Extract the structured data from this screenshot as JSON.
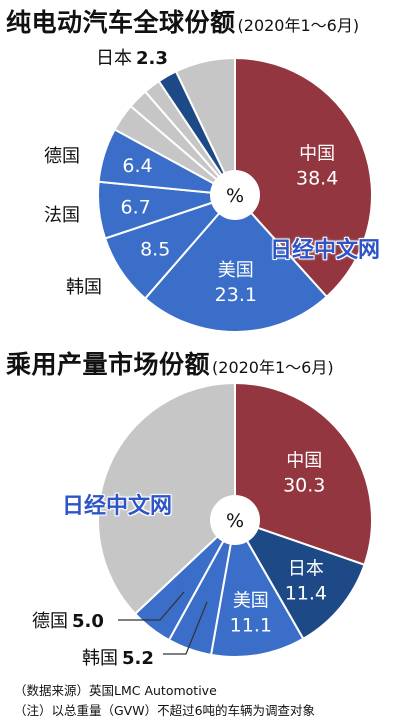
{
  "charts": [
    {
      "title": "纯电动汽车全球份额",
      "subtitle": "(2020年1～6月)",
      "unit": "%",
      "watermark": "日经中文网",
      "chart_data": {
        "type": "pie",
        "title": "纯电动汽车全球份额",
        "subtitle": "(2020年1～6月)",
        "unit": "%",
        "slices": [
          {
            "label": "中国",
            "value": 38.4,
            "color": "#93363f"
          },
          {
            "label": "美国",
            "value": 23.1,
            "color": "#3a6ec8"
          },
          {
            "label": "韩国",
            "value": 8.5,
            "color": "#3a6ec8"
          },
          {
            "label": "法国",
            "value": 6.7,
            "color": "#3a6ec8"
          },
          {
            "label": "德国",
            "value": 6.4,
            "color": "#3a6ec8"
          },
          {
            "label": "",
            "value": 3.3,
            "color": "#c6c6c6"
          },
          {
            "label": "",
            "value": 2.4,
            "color": "#c6c6c6"
          },
          {
            "label": "",
            "value": 2.0,
            "color": "#c6c6c6"
          },
          {
            "label": "日本",
            "value": 2.3,
            "color": "#1d4a86"
          },
          {
            "label": "",
            "value": 7.1,
            "color": "#c6c6c6"
          }
        ]
      }
    },
    {
      "title": "乘用产量市场份额",
      "subtitle": "(2020年1～6月)",
      "unit": "%",
      "watermark": "日经中文网",
      "chart_data": {
        "type": "pie",
        "title": "乘用产量市场份额",
        "subtitle": "(2020年1～6月)",
        "unit": "%",
        "slices": [
          {
            "label": "中国",
            "value": 30.3,
            "color": "#93363f"
          },
          {
            "label": "日本",
            "value": 11.4,
            "color": "#1d4a86"
          },
          {
            "label": "美国",
            "value": 11.1,
            "color": "#3a6ec8"
          },
          {
            "label": "韩国",
            "value": 5.2,
            "color": "#3a6ec8"
          },
          {
            "label": "德国",
            "value": 5.0,
            "color": "#3a6ec8"
          },
          {
            "label": "",
            "value": 37.0,
            "color": "#c6c6c6"
          }
        ]
      }
    }
  ],
  "footnotes": {
    "source": "（数据来源）英国LMC Automotive",
    "note": "（注）以总重量（GVW）不超过6吨的车辆为调查对象"
  }
}
